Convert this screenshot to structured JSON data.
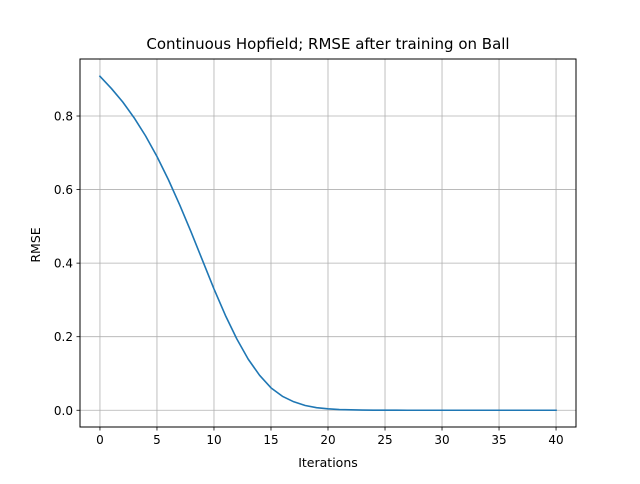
{
  "chart_data": {
    "type": "line",
    "title": "Continuous Hopfield; RMSE after training on Ball",
    "xlabel": "Iterations",
    "ylabel": "RMSE",
    "xlim": [
      -1.75,
      41.75
    ],
    "ylim": [
      -0.0455,
      0.955
    ],
    "x_ticks": [
      0,
      5,
      10,
      15,
      20,
      25,
      30,
      35,
      40
    ],
    "y_ticks": [
      0.0,
      0.2,
      0.4,
      0.6,
      0.8
    ],
    "x_tick_labels": [
      "0",
      "5",
      "10",
      "15",
      "20",
      "25",
      "30",
      "35",
      "40"
    ],
    "y_tick_labels": [
      "0.0",
      "0.2",
      "0.4",
      "0.6",
      "0.8"
    ],
    "grid": true,
    "legend": "none",
    "series": [
      {
        "color": "#1f77b4",
        "x": [
          0,
          1,
          2,
          3,
          4,
          5,
          6,
          7,
          8,
          9,
          10,
          11,
          12,
          13,
          14,
          15,
          16,
          17,
          18,
          19,
          20,
          21,
          22,
          23,
          24,
          25,
          26,
          27,
          28,
          29,
          30,
          31,
          32,
          33,
          34,
          35,
          36,
          37,
          38,
          39,
          40
        ],
        "y": [
          0.908,
          0.875,
          0.838,
          0.795,
          0.746,
          0.69,
          0.627,
          0.558,
          0.484,
          0.407,
          0.33,
          0.258,
          0.194,
          0.139,
          0.095,
          0.061,
          0.038,
          0.023,
          0.013,
          0.007,
          0.004,
          0.002,
          0.0012,
          0.0006,
          0.0003,
          0.0002,
          0.0001,
          0.0,
          0.0,
          0.0,
          0.0,
          0.0,
          0.0,
          0.0,
          0.0,
          0.0,
          0.0,
          0.0,
          0.0,
          0.0,
          0.0
        ]
      }
    ]
  }
}
